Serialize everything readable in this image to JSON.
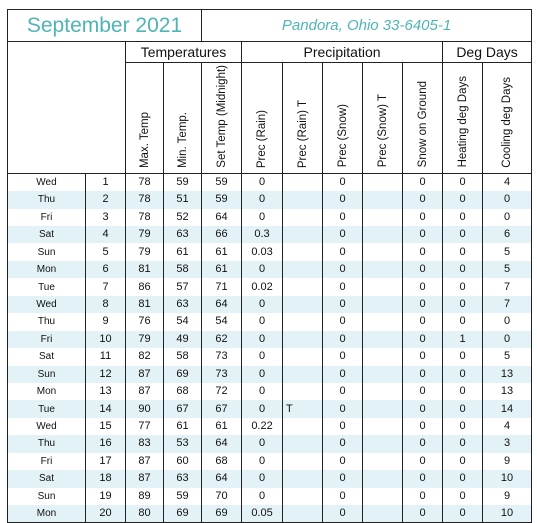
{
  "header": {
    "title": "September 2021",
    "location": "Pandora, Ohio 33-6405-1"
  },
  "groups": [
    "Temperatures",
    "Precipitation",
    "Deg Days"
  ],
  "columns": [
    "Max. Temp",
    "Min. Temp.",
    "Set Temp (Midnight)",
    "Prec (Rain)",
    "Prec (Rain) T",
    "Prec (Snow)",
    "Prec (Snow) T",
    "Snow on Ground",
    "Heating deg Days",
    "Cooling deg Days"
  ],
  "rows": [
    [
      "Wed",
      "1",
      "78",
      "59",
      "59",
      "0",
      "",
      "0",
      "",
      "0",
      "0",
      "4"
    ],
    [
      "Thu",
      "2",
      "78",
      "51",
      "59",
      "0",
      "",
      "0",
      "",
      "0",
      "0",
      "0"
    ],
    [
      "Fri",
      "3",
      "78",
      "52",
      "64",
      "0",
      "",
      "0",
      "",
      "0",
      "0",
      "0"
    ],
    [
      "Sat",
      "4",
      "79",
      "63",
      "66",
      "0.3",
      "",
      "0",
      "",
      "0",
      "0",
      "6"
    ],
    [
      "Sun",
      "5",
      "79",
      "61",
      "61",
      "0.03",
      "",
      "0",
      "",
      "0",
      "0",
      "5"
    ],
    [
      "Mon",
      "6",
      "81",
      "58",
      "61",
      "0",
      "",
      "0",
      "",
      "0",
      "0",
      "5"
    ],
    [
      "Tue",
      "7",
      "86",
      "57",
      "71",
      "0.02",
      "",
      "0",
      "",
      "0",
      "0",
      "7"
    ],
    [
      "Wed",
      "8",
      "81",
      "63",
      "64",
      "0",
      "",
      "0",
      "",
      "0",
      "0",
      "7"
    ],
    [
      "Thu",
      "9",
      "76",
      "54",
      "54",
      "0",
      "",
      "0",
      "",
      "0",
      "0",
      "0"
    ],
    [
      "Fri",
      "10",
      "79",
      "49",
      "62",
      "0",
      "",
      "0",
      "",
      "0",
      "1",
      "0"
    ],
    [
      "Sat",
      "11",
      "82",
      "58",
      "73",
      "0",
      "",
      "0",
      "",
      "0",
      "0",
      "5"
    ],
    [
      "Sun",
      "12",
      "87",
      "69",
      "73",
      "0",
      "",
      "0",
      "",
      "0",
      "0",
      "13"
    ],
    [
      "Mon",
      "13",
      "87",
      "68",
      "72",
      "0",
      "",
      "0",
      "",
      "0",
      "0",
      "13"
    ],
    [
      "Tue",
      "14",
      "90",
      "67",
      "67",
      "0",
      "T",
      "0",
      "",
      "0",
      "0",
      "14"
    ],
    [
      "Wed",
      "15",
      "77",
      "61",
      "61",
      "0.22",
      "",
      "0",
      "",
      "0",
      "0",
      "4"
    ],
    [
      "Thu",
      "16",
      "83",
      "53",
      "64",
      "0",
      "",
      "0",
      "",
      "0",
      "0",
      "3"
    ],
    [
      "Fri",
      "17",
      "87",
      "60",
      "68",
      "0",
      "",
      "0",
      "",
      "0",
      "0",
      "9"
    ],
    [
      "Sat",
      "18",
      "87",
      "63",
      "64",
      "0",
      "",
      "0",
      "",
      "0",
      "0",
      "10"
    ],
    [
      "Sun",
      "19",
      "89",
      "59",
      "70",
      "0",
      "",
      "0",
      "",
      "0",
      "0",
      "9"
    ],
    [
      "Mon",
      "20",
      "80",
      "69",
      "69",
      "0.05",
      "",
      "0",
      "",
      "0",
      "0",
      "10"
    ]
  ]
}
